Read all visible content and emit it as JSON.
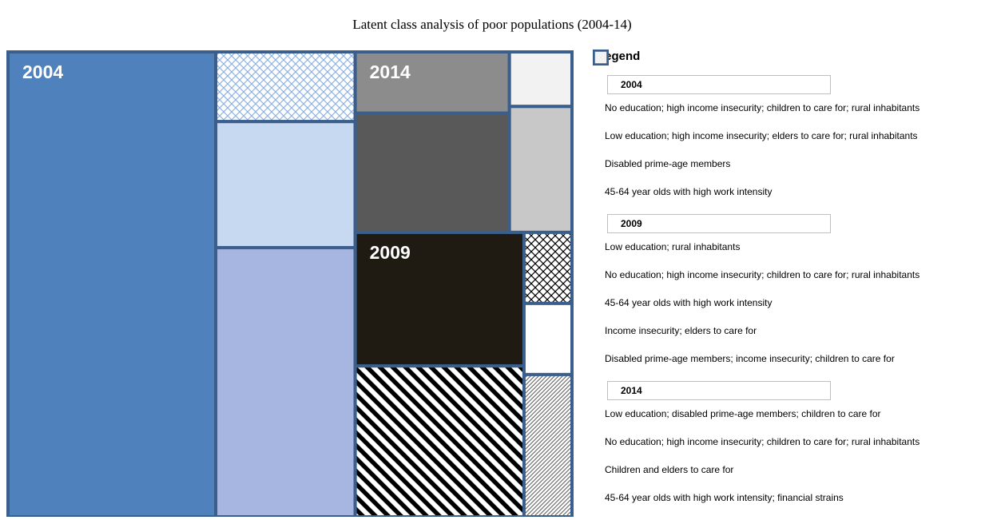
{
  "chart_data": {
    "type": "treemap",
    "title": "Latent class analysis of poor populations (2004-14)",
    "legend_title": "Legend",
    "border_color": "#3b5f8c",
    "groups": [
      {
        "name": "2004",
        "items": [
          {
            "name": "No education; high income insecurity; children to care for; rural inhabitants",
            "color": "#4f81bd",
            "value": 36.8
          },
          {
            "name": "Low education; high income insecurity; elders to care for; rural inhabitants",
            "color": "#a6b6e0",
            "value": 14.3
          },
          {
            "name": "Disabled prime-age members",
            "color": "#c6d9f1",
            "value": 6.7
          },
          {
            "name": "45-64 year olds with high work intensity",
            "color": "#8db3e2",
            "pattern": "crosshatch",
            "value": 3.7
          }
        ]
      },
      {
        "name": "2009",
        "items": [
          {
            "name": "Low education; rural inhabitants",
            "color": "#000000",
            "pattern": "stripes",
            "value": 9.7
          },
          {
            "name": "No education; high income insecurity; children to care for; rural inhabitants",
            "color": "#1f1a12",
            "value": 8.6
          },
          {
            "name": "45-64 year olds with high work intensity",
            "color": "#595959",
            "pattern": "hatch",
            "value": 2.6
          },
          {
            "name": "Income insecurity; elders to care for",
            "color": "#ffffff",
            "value": 1.3
          },
          {
            "name": "Disabled prime-age members; income insecurity; children to care for",
            "color": "#000000",
            "pattern": "crosshatch",
            "value": 1.3
          }
        ]
      },
      {
        "name": "2014",
        "items": [
          {
            "name": "Low education; disabled prime-age members; children to care for",
            "color": "#595959",
            "value": 7.0
          },
          {
            "name": "No education; high income insecurity; children to care for; rural inhabitants",
            "color": "#8c8c8c",
            "value": 3.6
          },
          {
            "name": "Children and elders to care for",
            "color": "#c8c8c8",
            "value": 3.0
          },
          {
            "name": "45-64 year olds with high work intensity; financial strains",
            "color": "#f2f2f2",
            "value": 1.3
          }
        ]
      }
    ]
  }
}
